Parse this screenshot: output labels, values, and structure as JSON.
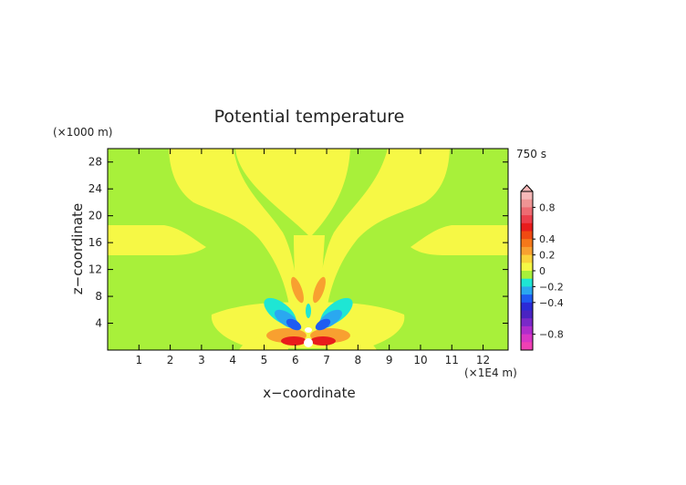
{
  "chart_data": {
    "type": "heatmap",
    "title": "Potential temperature",
    "time_label": "750 s",
    "xlabel": "x−coordinate",
    "ylabel": "z−coordinate",
    "x_unit": "(×1E4 m)",
    "y_unit": "(×1000 m)",
    "xlim": [
      0,
      12.8
    ],
    "ylim": [
      0,
      30
    ],
    "x_ticks": [
      1,
      2,
      3,
      4,
      5,
      6,
      7,
      8,
      9,
      10,
      11,
      12
    ],
    "y_ticks": [
      4,
      8,
      12,
      16,
      20,
      24,
      28
    ],
    "colorbar": {
      "labels": [
        0.8,
        0.4,
        0.2,
        0,
        -0.2,
        -0.4,
        -0.8
      ],
      "label_text": [
        "0.8",
        "0.4",
        "0.2",
        "0",
        "−0.2",
        "−0.4",
        "−0.8"
      ],
      "bands": [
        {
          "lo": 0.9,
          "hi": 1.0,
          "color": "#f7b8b8"
        },
        {
          "lo": 0.8,
          "hi": 0.9,
          "color": "#ef9494"
        },
        {
          "lo": 0.7,
          "hi": 0.8,
          "color": "#ee6b72"
        },
        {
          "lo": 0.6,
          "hi": 0.7,
          "color": "#ec3f4b"
        },
        {
          "lo": 0.5,
          "hi": 0.6,
          "color": "#e81c1c"
        },
        {
          "lo": 0.4,
          "hi": 0.5,
          "color": "#f04a12"
        },
        {
          "lo": 0.3,
          "hi": 0.4,
          "color": "#f5781a"
        },
        {
          "lo": 0.2,
          "hi": 0.3,
          "color": "#f8a030"
        },
        {
          "lo": 0.1,
          "hi": 0.2,
          "color": "#fbd23a"
        },
        {
          "lo": 0.0,
          "hi": 0.1,
          "color": "#f6f845"
        },
        {
          "lo": -0.1,
          "hi": 0.0,
          "color": "#a8f03a"
        },
        {
          "lo": -0.2,
          "hi": -0.1,
          "color": "#1ee6d4"
        },
        {
          "lo": -0.3,
          "hi": -0.2,
          "color": "#2aa8f0"
        },
        {
          "lo": -0.4,
          "hi": -0.3,
          "color": "#1e5cf2"
        },
        {
          "lo": -0.5,
          "hi": -0.4,
          "color": "#2b2ad6"
        },
        {
          "lo": -0.6,
          "hi": -0.5,
          "color": "#4a23c2"
        },
        {
          "lo": -0.7,
          "hi": -0.6,
          "color": "#7a28c8"
        },
        {
          "lo": -0.8,
          "hi": -0.7,
          "color": "#b02ccc"
        },
        {
          "lo": -0.9,
          "hi": -0.8,
          "color": "#d936c6"
        },
        {
          "lo": -1.0,
          "hi": -0.9,
          "color": "#f040b4"
        }
      ]
    },
    "colors": {
      "background_field": "#a8f03a",
      "positive_weak": "#f6f845",
      "positive_mid": "#f8a030",
      "positive_strong": "#e81c1c",
      "negative_weak": "#1ee6d4",
      "negative_mid": "#2aa8f0",
      "negative_strong": "#1e5cf2",
      "white_core": "#ffffff"
    }
  }
}
